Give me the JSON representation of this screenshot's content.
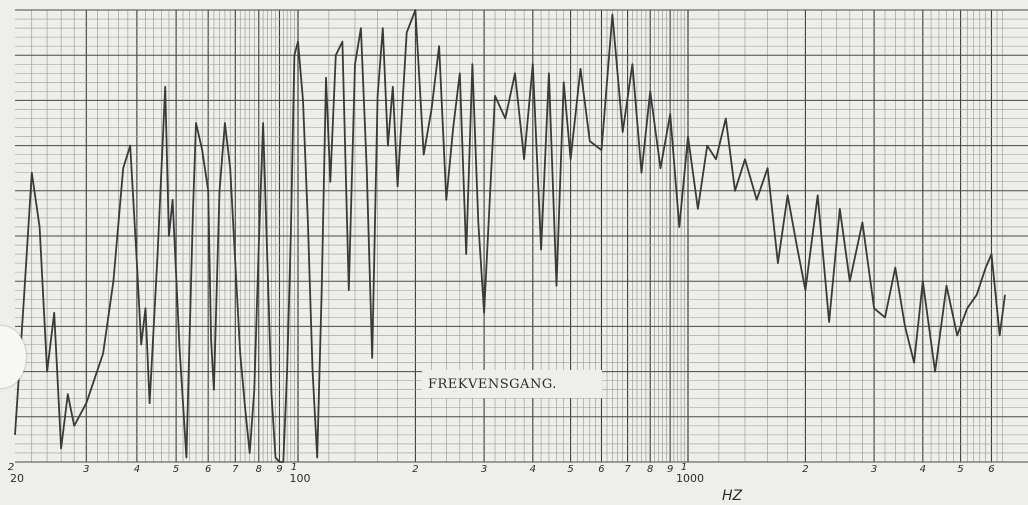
{
  "chart_data": {
    "type": "line",
    "title": "",
    "annotation": "FREKVENSGANG.",
    "xlabel": "HZ",
    "ylabel": "",
    "x_scale": "log",
    "xlim": [
      20,
      6500
    ],
    "ylim": [
      0,
      10
    ],
    "grid": true,
    "decade_labels": [
      {
        "value": 20,
        "label": "20",
        "top": "2"
      },
      {
        "value": 100,
        "label": "100",
        "top": "1"
      },
      {
        "value": 1000,
        "label": "1000",
        "top": "1"
      }
    ],
    "tick_labels": [
      {
        "value": 30,
        "label": "3"
      },
      {
        "value": 40,
        "label": "4"
      },
      {
        "value": 50,
        "label": "5"
      },
      {
        "value": 60,
        "label": "6"
      },
      {
        "value": 70,
        "label": "7"
      },
      {
        "value": 80,
        "label": "8"
      },
      {
        "value": 90,
        "label": "9"
      },
      {
        "value": 200,
        "label": "2"
      },
      {
        "value": 300,
        "label": "3"
      },
      {
        "value": 400,
        "label": "4"
      },
      {
        "value": 500,
        "label": "5"
      },
      {
        "value": 600,
        "label": "6"
      },
      {
        "value": 700,
        "label": "7"
      },
      {
        "value": 800,
        "label": "8"
      },
      {
        "value": 900,
        "label": "9"
      },
      {
        "value": 2000,
        "label": "2"
      },
      {
        "value": 3000,
        "label": "3"
      },
      {
        "value": 4000,
        "label": "4"
      },
      {
        "value": 5000,
        "label": "5"
      },
      {
        "value": 6000,
        "label": "6"
      }
    ],
    "series": [
      {
        "color": "#3a3a3a",
        "x": [
          20,
          21,
          22,
          23,
          24,
          25,
          26,
          27,
          28,
          30,
          33,
          35,
          37,
          38.5,
          40,
          41,
          42,
          43,
          45,
          47,
          48,
          49,
          51,
          53,
          55,
          56,
          58,
          60,
          61,
          62,
          64,
          66,
          68,
          70,
          72,
          74,
          76,
          78,
          80,
          82,
          84,
          86,
          88,
          90,
          92,
          94,
          96,
          98,
          100,
          103,
          106,
          109,
          112,
          115,
          118,
          121,
          125,
          130,
          135,
          140,
          145,
          150,
          155,
          160,
          165,
          170,
          175,
          180,
          190,
          200,
          210,
          220,
          230,
          240,
          250,
          260,
          270,
          280,
          290,
          300,
          320,
          340,
          360,
          380,
          400,
          420,
          440,
          460,
          480,
          500,
          530,
          560,
          600,
          640,
          680,
          720,
          760,
          800,
          850,
          900,
          950,
          1000,
          1060,
          1120,
          1180,
          1250,
          1320,
          1400,
          1500,
          1600,
          1700,
          1800,
          1900,
          2000,
          2150,
          2300,
          2450,
          2600,
          2800,
          3000,
          3200,
          3400,
          3600,
          3800,
          4000,
          4300,
          4600,
          4900,
          5200,
          5500,
          5800,
          6000,
          6300,
          6500
        ],
        "values": [
          0.6,
          3.5,
          6.4,
          5.2,
          2.0,
          3.3,
          0.3,
          1.5,
          0.8,
          1.3,
          2.4,
          4.0,
          6.5,
          7.0,
          4.4,
          2.6,
          3.4,
          1.3,
          4.6,
          8.3,
          5.0,
          5.8,
          2.5,
          0.1,
          5.5,
          7.5,
          6.9,
          6.0,
          2.7,
          1.6,
          6.0,
          7.5,
          6.5,
          4.4,
          2.4,
          1.2,
          0.2,
          1.6,
          4.8,
          7.5,
          4.5,
          1.5,
          0.1,
          0.0,
          0.0,
          2.0,
          5.0,
          9.0,
          9.3,
          8.0,
          5.3,
          2.0,
          0.1,
          3.8,
          8.5,
          6.2,
          9.0,
          9.3,
          3.8,
          8.8,
          9.6,
          6.5,
          2.3,
          8.1,
          9.6,
          7.0,
          8.3,
          6.1,
          9.5,
          10.0,
          6.8,
          7.8,
          9.2,
          5.8,
          7.4,
          8.6,
          4.6,
          8.8,
          5.3,
          3.3,
          8.1,
          7.6,
          8.6,
          6.7,
          8.8,
          4.7,
          8.6,
          3.9,
          8.4,
          6.7,
          8.7,
          7.1,
          6.9,
          9.9,
          7.3,
          8.8,
          6.4,
          8.2,
          6.5,
          7.7,
          5.2,
          7.2,
          5.6,
          7.0,
          6.7,
          7.6,
          6.0,
          6.7,
          5.8,
          6.5,
          4.4,
          5.9,
          4.8,
          3.8,
          5.9,
          3.1,
          5.6,
          4.0,
          5.3,
          3.4,
          3.2,
          4.3,
          3.0,
          2.2,
          4.0,
          2.0,
          3.9,
          2.8,
          3.4,
          3.7,
          4.3,
          4.6,
          2.8,
          3.7
        ]
      }
    ]
  }
}
